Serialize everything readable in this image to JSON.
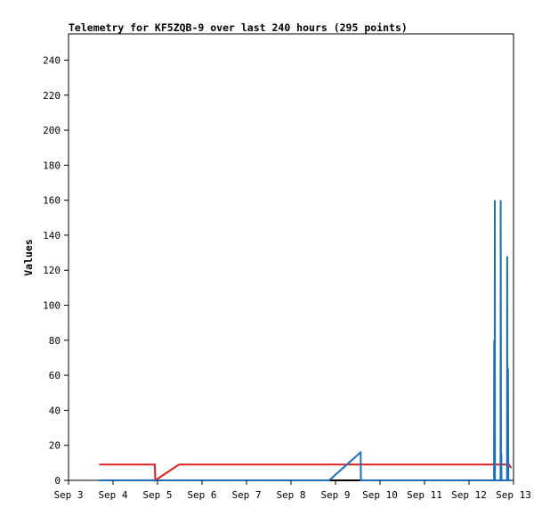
{
  "chart_data": {
    "type": "line",
    "title": "Telemetry for KF5ZQB-9 over last 240 hours (295 points)",
    "xlabel": "",
    "ylabel": "Values",
    "ylim": [
      0,
      255
    ],
    "yticks": [
      0,
      20,
      40,
      60,
      80,
      100,
      120,
      140,
      160,
      180,
      200,
      220,
      240
    ],
    "xlim": [
      0,
      240
    ],
    "xticks": [
      {
        "value": 0,
        "label": "Sep 3"
      },
      {
        "value": 24,
        "label": "Sep 4"
      },
      {
        "value": 48,
        "label": "Sep 5"
      },
      {
        "value": 72,
        "label": "Sep 6"
      },
      {
        "value": 96,
        "label": "Sep 7"
      },
      {
        "value": 120,
        "label": "Sep 8"
      },
      {
        "value": 144,
        "label": "Sep 9"
      },
      {
        "value": 168,
        "label": "Sep 10"
      },
      {
        "value": 192,
        "label": "Sep 11"
      },
      {
        "value": 216,
        "label": "Sep 12"
      },
      {
        "value": 240,
        "label": "Sep 13"
      }
    ],
    "grid": false,
    "legend": "none",
    "series": [
      {
        "color": "#000000",
        "x": [
          16.5,
          238.8
        ],
        "y": [
          0,
          0
        ]
      },
      {
        "color": "#e02020",
        "x": [
          16.5,
          46.5,
          46.8,
          59.5,
          228,
          237.5,
          238.8
        ],
        "y": [
          9,
          9,
          0,
          9,
          9,
          9,
          7
        ]
      },
      {
        "color": "#1f6fb8",
        "x": [
          16.5,
          140.5,
          140.6,
          157.5,
          157.6,
          157.7,
          229.5,
          229.6,
          229.8,
          229.9,
          230.0,
          233.0,
          233.1,
          233.3,
          233.4,
          233.5,
          233.7,
          233.8,
          236.5,
          236.6,
          236.8,
          236.9,
          237.0,
          237.2,
          237.3,
          237.4,
          238.8
        ],
        "y": [
          0,
          0,
          0,
          16,
          16,
          0,
          0,
          80,
          0,
          160,
          0,
          0,
          160,
          0,
          16,
          0,
          0,
          0,
          0,
          128,
          0,
          0,
          64,
          0,
          0,
          0,
          0
        ]
      }
    ]
  }
}
